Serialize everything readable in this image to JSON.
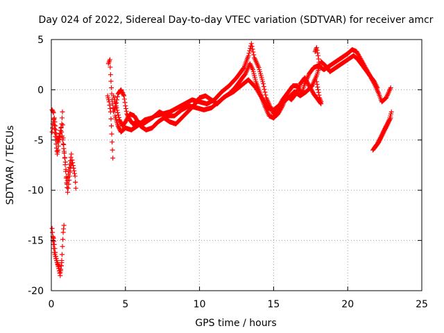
{
  "chart_data": {
    "type": "scatter",
    "title": "Day 024 of 2022, Sidereal Day-to-day VTEC variation (SDTVAR) for receiver amcr",
    "xlabel": "GPS time / hours",
    "ylabel": "SDTVAR / TECUs",
    "xlim": [
      0,
      25
    ],
    "ylim": [
      -20,
      5
    ],
    "xticks": [
      0,
      5,
      10,
      15,
      20,
      25
    ],
    "yticks": [
      -20,
      -15,
      -10,
      -5,
      0,
      5
    ],
    "xtick_labels": [
      "0",
      "5",
      "10",
      "15",
      "20",
      "25"
    ],
    "ytick_labels": [
      "-20",
      "-15",
      "-10",
      "-5",
      "0",
      "5"
    ],
    "grid": true,
    "legend": "none",
    "marker": "plus",
    "series": [
      {
        "name": "SDTVAR",
        "color": "#ff0000",
        "segments": [
          [
            [
              0.05,
              -2.0
            ],
            [
              0.15,
              -2.3
            ],
            [
              0.2,
              -3.5
            ],
            [
              0.25,
              -4.3
            ],
            [
              0.3,
              -5.0
            ],
            [
              0.35,
              -5.8
            ],
            [
              0.4,
              -6.4
            ],
            [
              0.45,
              -6.0
            ],
            [
              0.5,
              -5.2
            ],
            [
              0.6,
              -4.4
            ],
            [
              0.7,
              -3.4
            ],
            [
              0.75,
              -2.2
            ],
            [
              0.8,
              -4.8
            ],
            [
              0.9,
              -6.8
            ],
            [
              1.0,
              -8.8
            ],
            [
              1.1,
              -10.2
            ],
            [
              1.2,
              -9.0
            ],
            [
              1.3,
              -7.8
            ],
            [
              1.4,
              -7.0
            ],
            [
              1.5,
              -7.8
            ],
            [
              1.6,
              -8.6
            ],
            [
              1.65,
              -9.8
            ]
          ],
          [
            [
              0.05,
              -4.2
            ],
            [
              0.1,
              -3.4
            ],
            [
              0.2,
              -2.8
            ],
            [
              0.3,
              -4.0
            ],
            [
              0.4,
              -5.2
            ],
            [
              0.55,
              -4.6
            ],
            [
              0.65,
              -3.8
            ],
            [
              0.8,
              -5.4
            ],
            [
              0.95,
              -7.2
            ],
            [
              1.05,
              -9.4
            ],
            [
              1.15,
              -8.4
            ],
            [
              1.25,
              -7.4
            ],
            [
              1.35,
              -6.4
            ]
          ],
          [
            [
              0.05,
              -13.8
            ],
            [
              0.1,
              -14.6
            ],
            [
              0.15,
              -14.8
            ],
            [
              0.2,
              -15.4
            ],
            [
              0.3,
              -16.6
            ],
            [
              0.4,
              -17.2
            ],
            [
              0.5,
              -17.6
            ],
            [
              0.6,
              -18.2
            ],
            [
              0.7,
              -17.2
            ],
            [
              0.75,
              -15.6
            ],
            [
              0.8,
              -14.2
            ],
            [
              0.85,
              -13.5
            ]
          ],
          [
            [
              0.1,
              -15.0
            ],
            [
              0.2,
              -16.2
            ],
            [
              0.35,
              -17.0
            ],
            [
              0.5,
              -17.8
            ],
            [
              0.6,
              -18.5
            ],
            [
              0.7,
              -17.0
            ]
          ],
          [
            [
              3.8,
              -0.6
            ],
            [
              3.9,
              -1.2
            ],
            [
              4.0,
              -2.2
            ],
            [
              4.05,
              -3.6
            ],
            [
              4.1,
              -5.2
            ],
            [
              4.15,
              -6.8
            ]
          ],
          [
            [
              3.85,
              2.6
            ],
            [
              3.95,
              3.0
            ],
            [
              4.0,
              1.5
            ],
            [
              4.05,
              0.2
            ],
            [
              4.1,
              -1.0
            ],
            [
              4.2,
              -2.2
            ],
            [
              4.35,
              -1.6
            ],
            [
              4.5,
              -0.4
            ],
            [
              4.7,
              0.0
            ],
            [
              4.9,
              -0.6
            ],
            [
              5.0,
              -1.6
            ],
            [
              5.1,
              -2.4
            ],
            [
              5.3,
              -3.0
            ],
            [
              5.5,
              -3.4
            ],
            [
              5.8,
              -3.2
            ],
            [
              6.2,
              -3.4
            ],
            [
              6.6,
              -3.0
            ],
            [
              7.0,
              -2.6
            ],
            [
              7.5,
              -2.4
            ],
            [
              8.0,
              -2.2
            ],
            [
              8.5,
              -1.8
            ],
            [
              9.0,
              -1.4
            ],
            [
              9.5,
              -1.0
            ],
            [
              10.0,
              -1.2
            ],
            [
              10.5,
              -1.4
            ],
            [
              11.0,
              -1.0
            ],
            [
              11.5,
              -0.2
            ],
            [
              12.0,
              0.4
            ],
            [
              12.5,
              1.2
            ],
            [
              13.0,
              2.2
            ],
            [
              13.3,
              3.4
            ],
            [
              13.5,
              4.6
            ],
            [
              13.7,
              3.2
            ],
            [
              14.0,
              2.2
            ],
            [
              14.3,
              0.6
            ],
            [
              14.5,
              -0.8
            ],
            [
              14.8,
              -1.8
            ],
            [
              15.0,
              -2.4
            ],
            [
              15.3,
              -1.8
            ],
            [
              15.6,
              -1.0
            ],
            [
              16.0,
              -0.2
            ],
            [
              16.3,
              0.4
            ],
            [
              16.6,
              0.4
            ],
            [
              16.9,
              -0.4
            ],
            [
              17.1,
              0.6
            ],
            [
              17.4,
              1.6
            ],
            [
              17.7,
              2.2
            ],
            [
              18.0,
              2.4
            ],
            [
              18.4,
              2.0
            ],
            [
              18.8,
              2.4
            ],
            [
              19.2,
              2.8
            ],
            [
              19.6,
              3.2
            ],
            [
              20.0,
              3.6
            ],
            [
              20.3,
              4.0
            ],
            [
              20.6,
              3.8
            ],
            [
              20.9,
              3.0
            ],
            [
              21.2,
              2.2
            ],
            [
              21.5,
              1.4
            ],
            [
              21.8,
              0.6
            ],
            [
              22.1,
              -0.4
            ],
            [
              22.3,
              -1.2
            ],
            [
              22.6,
              -0.8
            ],
            [
              22.9,
              0.2
            ]
          ],
          [
            [
              4.2,
              -0.6
            ],
            [
              4.4,
              -1.8
            ],
            [
              4.6,
              -3.0
            ],
            [
              4.8,
              -3.6
            ],
            [
              5.0,
              -3.2
            ],
            [
              5.3,
              -2.4
            ],
            [
              5.6,
              -2.6
            ],
            [
              6.0,
              -3.6
            ],
            [
              6.4,
              -4.0
            ],
            [
              6.8,
              -3.8
            ],
            [
              7.2,
              -3.2
            ],
            [
              7.6,
              -2.8
            ],
            [
              8.0,
              -3.2
            ],
            [
              8.4,
              -3.4
            ],
            [
              8.8,
              -2.8
            ],
            [
              9.2,
              -2.2
            ],
            [
              9.6,
              -1.6
            ],
            [
              10.0,
              -0.8
            ],
            [
              10.4,
              -0.6
            ],
            [
              10.8,
              -1.0
            ],
            [
              11.2,
              -1.4
            ],
            [
              11.6,
              -0.8
            ],
            [
              12.0,
              -0.4
            ],
            [
              12.4,
              0.2
            ],
            [
              12.8,
              1.0
            ],
            [
              13.1,
              1.6
            ],
            [
              13.4,
              2.6
            ],
            [
              13.6,
              2.0
            ],
            [
              13.8,
              0.8
            ],
            [
              14.1,
              -0.4
            ],
            [
              14.4,
              -1.6
            ],
            [
              14.7,
              -2.6
            ],
            [
              15.0,
              -2.8
            ],
            [
              15.3,
              -2.4
            ],
            [
              15.6,
              -1.6
            ],
            [
              15.9,
              -0.6
            ],
            [
              16.2,
              -1.0
            ],
            [
              16.5,
              -0.4
            ],
            [
              16.8,
              0.6
            ],
            [
              17.1,
              1.2
            ],
            [
              17.4,
              0.4
            ],
            [
              17.7,
              -0.4
            ],
            [
              18.0,
              -1.0
            ],
            [
              18.2,
              -1.4
            ]
          ],
          [
            [
              4.3,
              -2.6
            ],
            [
              4.5,
              -3.6
            ],
            [
              4.7,
              -4.2
            ],
            [
              5.0,
              -3.8
            ],
            [
              5.4,
              -4.0
            ],
            [
              5.8,
              -3.6
            ],
            [
              6.3,
              -3.0
            ],
            [
              6.8,
              -2.8
            ],
            [
              7.3,
              -2.2
            ],
            [
              7.8,
              -2.6
            ],
            [
              8.3,
              -2.6
            ],
            [
              8.8,
              -2.0
            ],
            [
              9.3,
              -1.6
            ],
            [
              9.8,
              -1.8
            ],
            [
              10.3,
              -2.0
            ],
            [
              10.8,
              -1.8
            ],
            [
              11.3,
              -1.2
            ],
            [
              11.8,
              -0.6
            ],
            [
              12.3,
              -0.2
            ],
            [
              12.8,
              0.4
            ],
            [
              13.3,
              1.0
            ],
            [
              13.8,
              0.2
            ],
            [
              14.2,
              -0.8
            ],
            [
              14.6,
              -1.8
            ],
            [
              15.0,
              -2.0
            ],
            [
              15.5,
              -1.4
            ],
            [
              16.0,
              -0.8
            ],
            [
              16.4,
              -0.2
            ],
            [
              16.8,
              -0.6
            ],
            [
              17.2,
              -0.2
            ],
            [
              17.6,
              0.4
            ],
            [
              17.9,
              1.4
            ],
            [
              18.2,
              2.8
            ],
            [
              18.5,
              2.4
            ],
            [
              18.8,
              1.8
            ],
            [
              19.2,
              2.2
            ],
            [
              19.6,
              2.6
            ],
            [
              20.0,
              3.0
            ],
            [
              20.4,
              3.4
            ],
            [
              20.7,
              3.0
            ],
            [
              21.0,
              2.4
            ],
            [
              21.4,
              1.6
            ],
            [
              21.8,
              0.8
            ],
            [
              22.0,
              0.2
            ]
          ],
          [
            [
              17.8,
              3.8
            ],
            [
              17.9,
              4.2
            ],
            [
              18.0,
              3.4
            ],
            [
              18.1,
              2.4
            ]
          ],
          [
            [
              17.9,
              0.8
            ],
            [
              18.0,
              0.0
            ],
            [
              18.1,
              -0.8
            ],
            [
              18.2,
              -1.2
            ]
          ],
          [
            [
              21.7,
              -6.0
            ],
            [
              21.9,
              -5.6
            ],
            [
              22.1,
              -5.2
            ],
            [
              22.3,
              -4.6
            ],
            [
              22.5,
              -4.0
            ],
            [
              22.7,
              -3.4
            ],
            [
              22.9,
              -2.8
            ]
          ],
          [
            [
              21.8,
              -5.8
            ],
            [
              22.0,
              -5.4
            ],
            [
              22.2,
              -4.8
            ],
            [
              22.4,
              -4.2
            ],
            [
              22.6,
              -3.6
            ],
            [
              22.8,
              -3.0
            ],
            [
              22.95,
              -2.2
            ]
          ]
        ]
      }
    ]
  }
}
